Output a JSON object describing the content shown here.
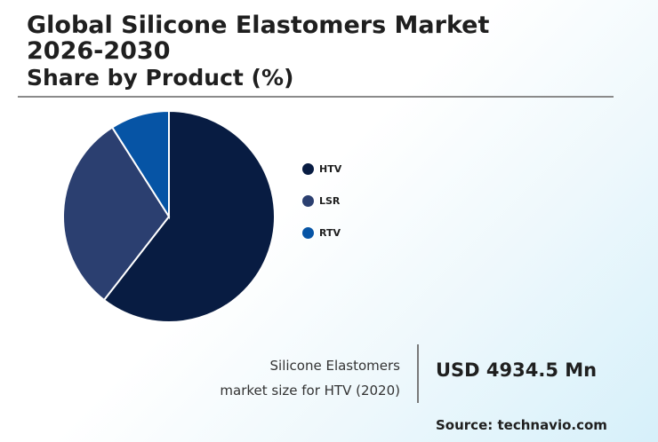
{
  "header": {
    "title": "Global Silicone Elastomers Market 2026-2030",
    "subtitle": "Share by Product (%)"
  },
  "chart_data": {
    "type": "pie",
    "title": "Share by Product (%)",
    "start_angle_deg": 0,
    "direction": "clockwise",
    "slices": [
      {
        "label": "HTV",
        "value": 60.5,
        "color": "#081c42"
      },
      {
        "label": "LSR",
        "value": 30.5,
        "color": "#2b3f70"
      },
      {
        "label": "RTV",
        "value": 9.0,
        "color": "#0654a5"
      }
    ],
    "legend_position": "right"
  },
  "market": {
    "label_line1": "Silicone Elastomers",
    "label_line2": "market size for HTV (2020)",
    "value": "USD 4934.5 Mn"
  },
  "source": "Source: technavio.com"
}
